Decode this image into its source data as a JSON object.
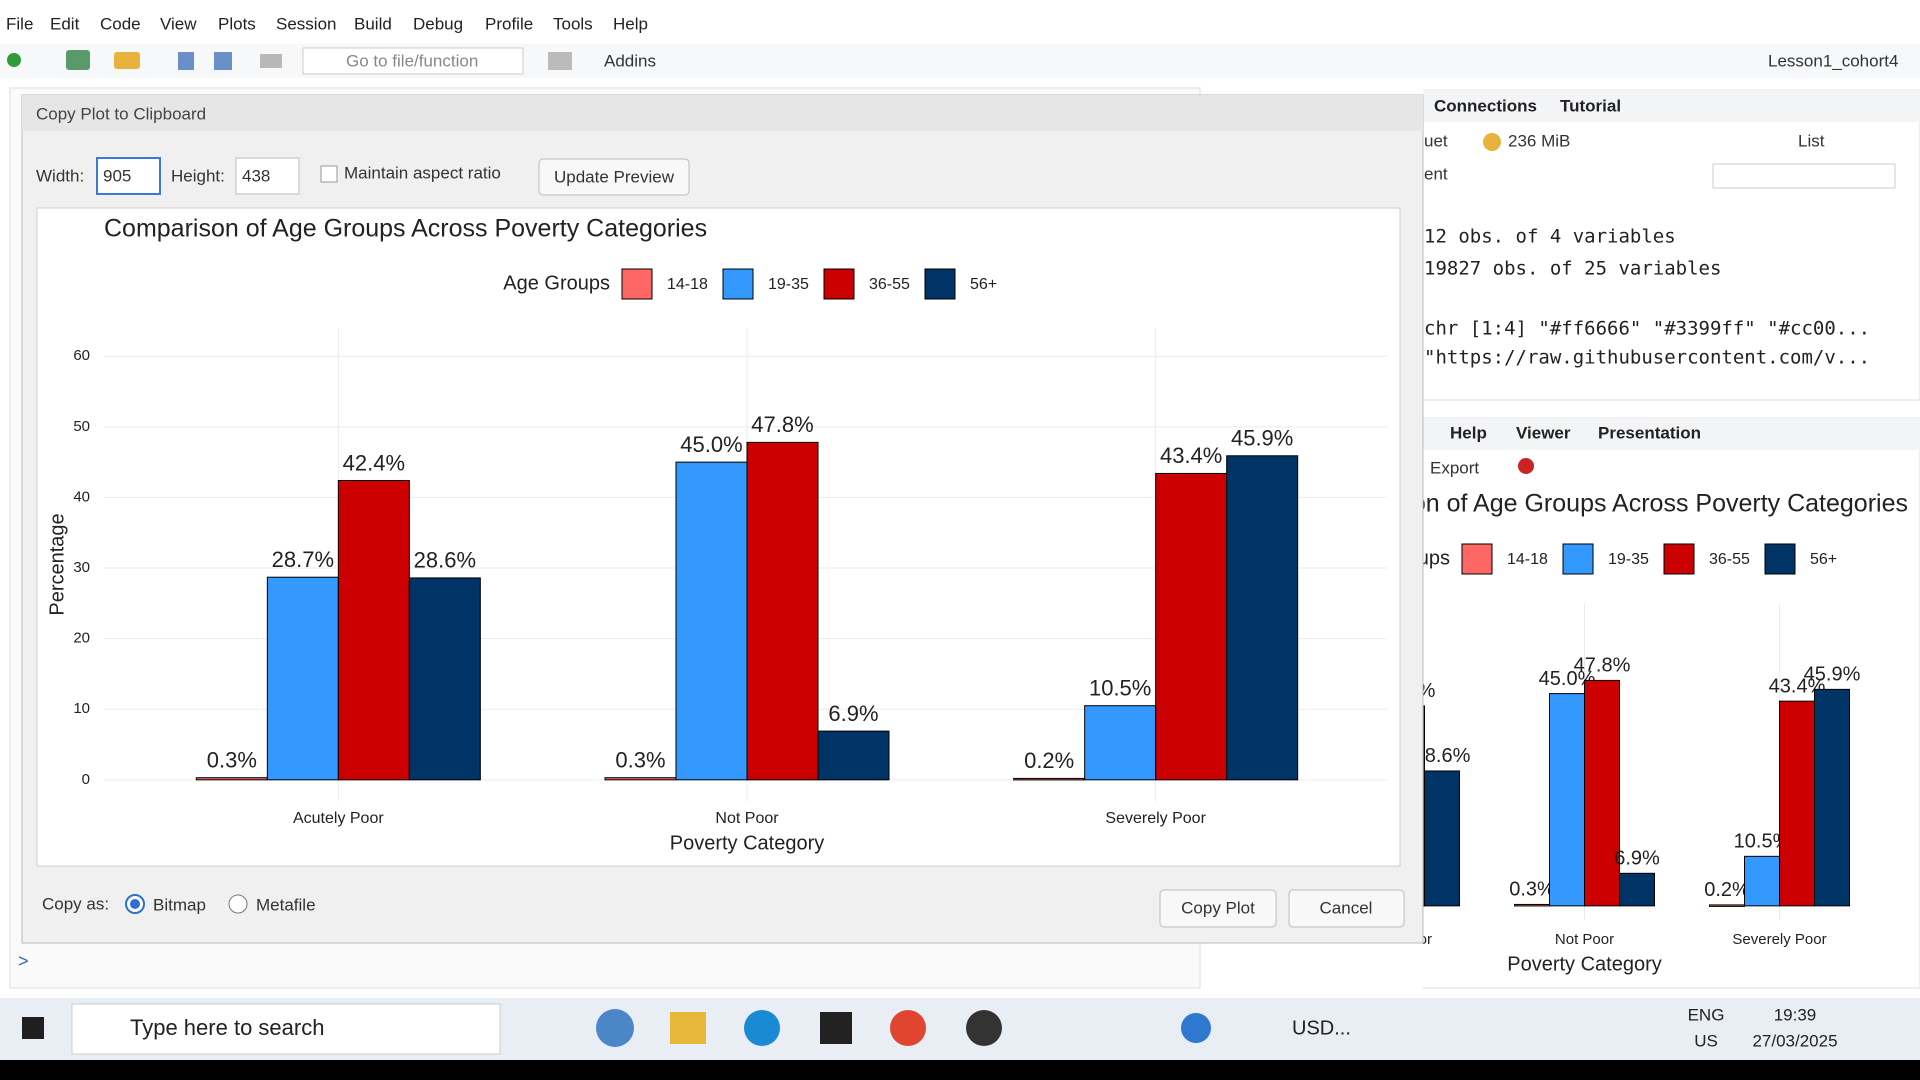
{
  "menu": [
    "File",
    "Edit",
    "Code",
    "View",
    "Plots",
    "Session",
    "Build",
    "Debug",
    "Profile",
    "Tools",
    "Help"
  ],
  "toolbar": {
    "goto": "Go to file/function",
    "addins": "Addins",
    "project": "Lesson1_cohort4"
  },
  "environment_pane": {
    "tabs": [
      "Connections",
      "Tutorial"
    ],
    "import_fragment": "uet",
    "memory": "236 MiB",
    "view": "List",
    "env_fragment": "ent",
    "rows": [
      "12 obs. of 4 variables",
      "19827 obs. of 25 variables",
      "chr [1:4] \"#ff6666\" \"#3399ff\" \"#cc00...",
      "\"https://raw.githubusercontent.com/v..."
    ]
  },
  "viewer_pane": {
    "tabs": [
      "Help",
      "Viewer",
      "Presentation"
    ],
    "export": "Export"
  },
  "console": {
    "prompt": ">"
  },
  "dialog": {
    "title": "Copy Plot to Clipboard",
    "width_label": "Width:",
    "width": "905",
    "height_label": "Height:",
    "height": "438",
    "aspect": "Maintain aspect ratio",
    "update": "Update Preview",
    "copy_as": "Copy as:",
    "bitmap": "Bitmap",
    "metafile": "Metafile",
    "copy": "Copy Plot",
    "cancel": "Cancel"
  },
  "chart_data": {
    "type": "bar",
    "title": "Comparison of Age Groups Across Poverty Categories",
    "x_label": "Poverty Category",
    "y_label": "Percentage",
    "legend_title": "Age Groups",
    "legend": "top",
    "categories": [
      "Acutely Poor",
      "Not Poor",
      "Severely Poor"
    ],
    "series": [
      {
        "name": "14-18",
        "color": "#ff6666",
        "values": [
          0.3,
          0.3,
          0.2
        ],
        "value_labels": [
          "0.3%",
          "0.3%",
          "0.2%"
        ]
      },
      {
        "name": "19-35",
        "color": "#3399ff",
        "values": [
          28.7,
          45.0,
          10.5
        ],
        "value_labels": [
          "28.7%",
          "45.0%",
          "10.5%"
        ]
      },
      {
        "name": "36-55",
        "color": "#cc0000",
        "values": [
          42.4,
          47.8,
          43.4
        ],
        "value_labels": [
          "42.4%",
          "47.8%",
          "43.4%"
        ]
      },
      {
        "name": "56+",
        "color": "#003366",
        "values": [
          28.6,
          6.9,
          45.9
        ],
        "value_labels": [
          "28.6%",
          "6.9%",
          "45.9%"
        ]
      }
    ],
    "ylim": [
      -3,
      64
    ],
    "yticks": [
      0,
      10,
      20,
      30,
      40,
      50,
      60
    ],
    "grid": true
  },
  "taskbar": {
    "search": "Type here to search",
    "currency": "USD...",
    "lang": "ENG",
    "region": "US",
    "time": "19:39",
    "date": "27/03/2025"
  }
}
